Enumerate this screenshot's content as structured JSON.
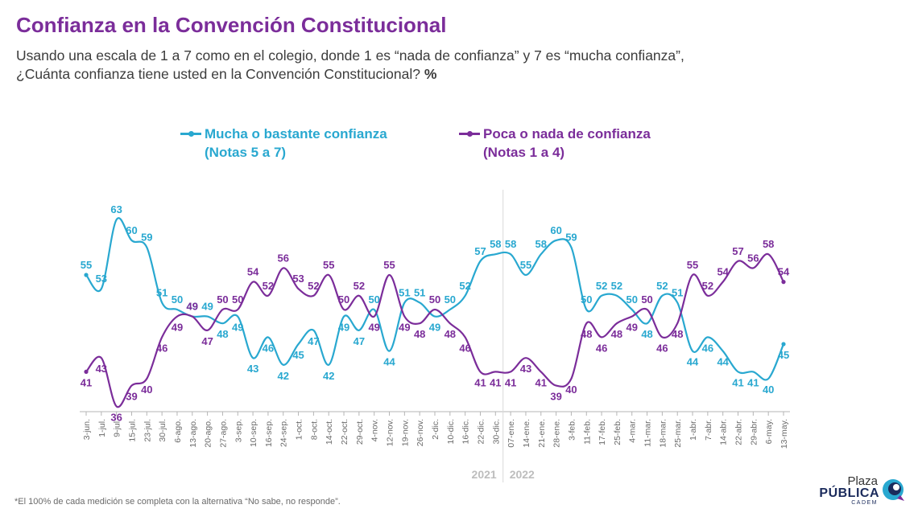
{
  "title": "Confianza en la Convención Constitucional",
  "subtitle": {
    "line1": "Usando una escala de 1 a 7 como en el colegio, donde 1 es “nada de confianza” y 7 es “mucha confianza”,",
    "line2": "¿Cuánta confianza tiene usted en la Convención Constitucional?",
    "unit": "%"
  },
  "footnote": "*El 100% de cada medición se completa con la alternativa “No sabe, no responde”.",
  "logo": {
    "line1": "Plaza",
    "line2": "PÚBLICA",
    "line3": "CADEM"
  },
  "colors": {
    "series1": "#29a8d0",
    "series2": "#7b2d9a",
    "title": "#7b2d9a",
    "axis": "#b5b5b5",
    "year": "#bdbdbd"
  },
  "chart_data": {
    "type": "line",
    "title": "Confianza en la Convención Constitucional",
    "categories": [
      "3-jun.",
      "1-jul.",
      "9-jul.",
      "15-jul.",
      "23-jul.",
      "30-jul.",
      "6-ago.",
      "13-ago.",
      "20-ago.",
      "27-ago.",
      "3-sep.",
      "10-sep.",
      "16-sep.",
      "24-sep.",
      "1-oct.",
      "8-oct.",
      "14-oct.",
      "22-oct.",
      "29-oct.",
      "4-nov.",
      "12-nov.",
      "19-nov.",
      "26-nov.",
      "2-dic.",
      "10-dic.",
      "16-dic.",
      "22-dic.",
      "30-dic.",
      "07-ene.",
      "14-ene.",
      "21-ene.",
      "28-ene.",
      "3-feb.",
      "11-feb.",
      "17-feb.",
      "25-feb.",
      "4-mar.",
      "11-mar.",
      "18-mar.",
      "25-mar.",
      "1-abr.",
      "7-abr.",
      "14-abr.",
      "22-abr.",
      "29-abr.",
      "6-may.",
      "13-may."
    ],
    "year_labels": [
      "2021",
      "2022"
    ],
    "year_divider_after": "30-dic.",
    "legend_position": "top",
    "series": [
      {
        "name": "Mucha o bastante confianza",
        "subname": "(Notas 5 a 7)",
        "values": [
          55,
          53,
          63,
          60,
          59,
          51,
          50,
          49,
          49,
          48,
          49,
          43,
          46,
          42,
          45,
          47,
          42,
          49,
          47,
          50,
          44,
          51,
          51,
          49,
          50,
          52,
          57,
          58,
          58,
          55,
          58,
          60,
          59,
          50,
          52,
          52,
          50,
          48,
          52,
          51,
          44,
          46,
          44,
          41,
          41,
          40,
          45
        ]
      },
      {
        "name": "Poca o nada de confianza",
        "subname": "(Notas 1 a 4)",
        "values": [
          41,
          43,
          36,
          39,
          40,
          46,
          49,
          49,
          47,
          50,
          50,
          54,
          52,
          56,
          53,
          52,
          55,
          50,
          52,
          49,
          55,
          49,
          48,
          50,
          48,
          46,
          41,
          41,
          41,
          43,
          41,
          39,
          40,
          48,
          46,
          48,
          49,
          50,
          46,
          48,
          55,
          52,
          54,
          57,
          56,
          58,
          54
        ]
      }
    ]
  }
}
